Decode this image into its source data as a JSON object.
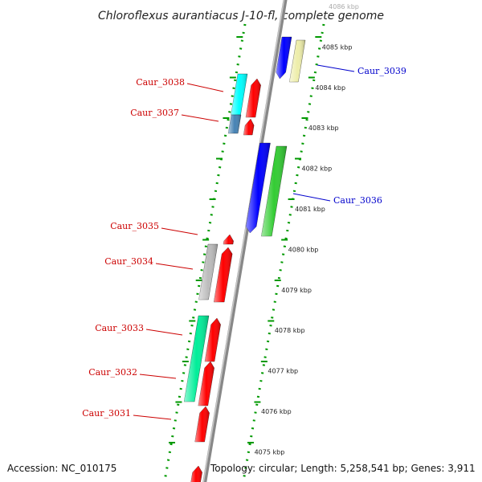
{
  "title": "Chloroflexus aurantiacus J-10-fl, complete genome",
  "footer": {
    "accession": "Accession: NC_010175",
    "topology": "Topology: circular; Length: 5,258,541 bp; Genes: 3,911"
  },
  "ticks": [
    {
      "label": "4086 kbp",
      "faint": true
    },
    {
      "label": "4085 kbp"
    },
    {
      "label": "4084 kbp"
    },
    {
      "label": "4083 kbp"
    },
    {
      "label": "4082 kbp"
    },
    {
      "label": "4081 kbp"
    },
    {
      "label": "4080 kbp"
    },
    {
      "label": "4079 kbp"
    },
    {
      "label": "4078 kbp"
    },
    {
      "label": "4077 kbp"
    },
    {
      "label": "4076 kbp"
    },
    {
      "label": "4075 kbp"
    }
  ],
  "genes": [
    {
      "label": "Caur_3039",
      "strand": "plus",
      "color": "#0000cc"
    },
    {
      "label": "Caur_3038",
      "strand": "minus",
      "color": "#cc0000"
    },
    {
      "label": "Caur_3037",
      "strand": "minus",
      "color": "#cc0000"
    },
    {
      "label": "Caur_3036",
      "strand": "plus",
      "color": "#0000cc"
    },
    {
      "label": "Caur_3035",
      "strand": "minus",
      "color": "#cc0000"
    },
    {
      "label": "Caur_3034",
      "strand": "minus",
      "color": "#cc0000"
    },
    {
      "label": "Caur_3033",
      "strand": "minus",
      "color": "#cc0000"
    },
    {
      "label": "Caur_3032",
      "strand": "minus",
      "color": "#cc0000"
    },
    {
      "label": "Caur_3031",
      "strand": "minus",
      "color": "#cc0000"
    }
  ],
  "colors": {
    "forward_arrow": "#0000ff",
    "reverse_arrow": "#ff0000",
    "backbone": "#888888",
    "dotted_track": "#009900",
    "cog_yellow": "#eeeeaa",
    "cog_cyan": "#00ffff",
    "cog_steelblue": "#4682b4",
    "cog_green": "#33cc33",
    "cog_gray": "#bbbbbb",
    "cog_springgreen": "#00ee99"
  }
}
